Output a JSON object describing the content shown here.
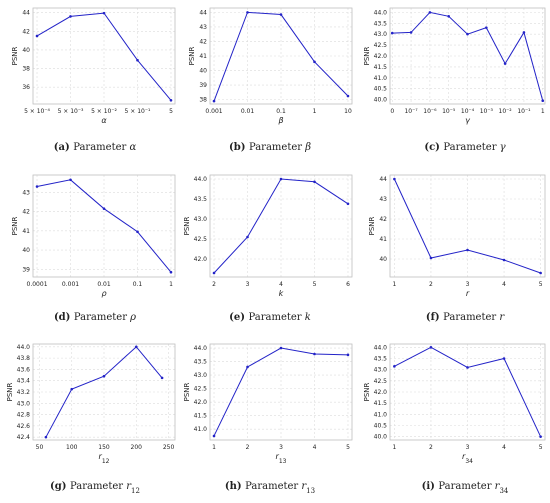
{
  "style": {
    "line_color": "#2323c8",
    "grid_color": "#dcdcdc",
    "axis_color": "#bfbfbf"
  },
  "chart_data": [
    {
      "type": "line",
      "label": "(a)",
      "caption_text": "Parameter",
      "caption_sym": "α",
      "xlabel": "α",
      "ylabel": "PSNR",
      "categories": [
        "5 × 10⁻⁴",
        "5 × 10⁻³",
        "5 × 10⁻²",
        "5 × 10⁻¹",
        "5"
      ],
      "values": [
        41.5,
        43.6,
        43.95,
        38.9,
        34.6
      ],
      "yticks": [
        36,
        38,
        40,
        42,
        44
      ],
      "ylim": [
        34.2,
        44.5
      ],
      "grid": true
    },
    {
      "type": "line",
      "label": "(b)",
      "caption_text": "Parameter",
      "caption_sym": "β",
      "xlabel": "β",
      "ylabel": "PSNR",
      "categories": [
        "0.001",
        "0.01",
        "0.1",
        "1",
        "10"
      ],
      "values": [
        37.9,
        44.0,
        43.85,
        40.6,
        38.25
      ],
      "yticks": [
        38,
        39,
        40,
        41,
        42,
        43,
        44
      ],
      "ylim": [
        37.7,
        44.3
      ],
      "grid": true
    },
    {
      "type": "line",
      "label": "(c)",
      "caption_text": "Parameter",
      "caption_sym": "γ",
      "xlabel": "γ",
      "ylabel": "PSNR",
      "categories": [
        "0",
        "10⁻⁷",
        "10⁻⁶",
        "10⁻⁵",
        "10⁻⁴",
        "10⁻³",
        "10⁻²",
        "10⁻¹",
        "1"
      ],
      "values": [
        43.05,
        43.08,
        44.0,
        43.82,
        43.0,
        43.3,
        41.65,
        43.08,
        39.95
      ],
      "yticks": [
        40.0,
        40.5,
        41.0,
        41.5,
        42.0,
        42.5,
        43.0,
        43.5,
        44.0
      ],
      "ylim": [
        39.8,
        44.2
      ],
      "grid": true
    },
    {
      "type": "line",
      "label": "(d)",
      "caption_text": "Parameter",
      "caption_sym": "ρ",
      "xlabel": "ρ",
      "ylabel": "PSNR",
      "categories": [
        "0.0001",
        "0.001",
        "0.01",
        "0.1",
        "1"
      ],
      "values": [
        43.3,
        43.65,
        42.15,
        40.95,
        38.85
      ],
      "yticks": [
        39,
        40,
        41,
        42,
        43
      ],
      "ylim": [
        38.6,
        43.9
      ],
      "grid": true
    },
    {
      "type": "line",
      "label": "(e)",
      "caption_text": "Parameter",
      "caption_sym": "k",
      "xlabel": "k",
      "ylabel": "PSNR",
      "categories": [
        "2",
        "3",
        "4",
        "5",
        "6"
      ],
      "values": [
        41.65,
        42.55,
        44.0,
        43.93,
        43.38
      ],
      "yticks": [
        42.0,
        42.5,
        43.0,
        43.5,
        44.0
      ],
      "ylim": [
        41.55,
        44.1
      ],
      "grid": true
    },
    {
      "type": "line",
      "label": "(f)",
      "caption_text": "Parameter",
      "caption_sym": "r",
      "xlabel": "r",
      "ylabel": "PSNR",
      "categories": [
        "1",
        "2",
        "3",
        "4",
        "5"
      ],
      "values": [
        44.0,
        40.05,
        40.45,
        39.95,
        39.3
      ],
      "yticks": [
        40,
        41,
        42,
        43,
        44
      ],
      "ylim": [
        39.1,
        44.2
      ],
      "grid": true
    },
    {
      "type": "line",
      "label": "(g)",
      "caption_text": "Parameter",
      "caption_sym": "r",
      "caption_sub": "12",
      "xlabel": "r",
      "xlabel_sub": "12",
      "ylabel": "PSNR",
      "categories": [
        "50",
        "100",
        "150",
        "200",
        "250"
      ],
      "x": [
        60,
        100,
        150,
        200,
        240
      ],
      "xlim": [
        40,
        260
      ],
      "values": [
        42.4,
        43.25,
        43.48,
        44.0,
        43.45
      ],
      "yticks": [
        42.4,
        42.6,
        42.8,
        43.0,
        43.2,
        43.4,
        43.6,
        43.8,
        44.0
      ],
      "ylim": [
        42.35,
        44.05
      ],
      "grid": true
    },
    {
      "type": "line",
      "label": "(h)",
      "caption_text": "Parameter",
      "caption_sym": "r",
      "caption_sub": "13",
      "xlabel": "r",
      "xlabel_sub": "13",
      "ylabel": "PSNR",
      "categories": [
        "1",
        "2",
        "3",
        "4",
        "5"
      ],
      "values": [
        40.75,
        43.3,
        44.0,
        43.78,
        43.75
      ],
      "yticks": [
        41.0,
        41.5,
        42.0,
        42.5,
        43.0,
        43.5,
        44.0
      ],
      "ylim": [
        40.6,
        44.15
      ],
      "grid": true
    },
    {
      "type": "line",
      "label": "(i)",
      "caption_text": "Parameter",
      "caption_sym": "r",
      "caption_sub": "34",
      "xlabel": "r",
      "xlabel_sub": "34",
      "ylabel": "PSNR",
      "categories": [
        "1",
        "2",
        "3",
        "4",
        "5"
      ],
      "values": [
        43.15,
        44.0,
        43.1,
        43.5,
        40.0
      ],
      "yticks": [
        40.0,
        40.5,
        41.0,
        41.5,
        42.0,
        42.5,
        43.0,
        43.5,
        44.0
      ],
      "ylim": [
        39.85,
        44.15
      ],
      "grid": true
    }
  ]
}
